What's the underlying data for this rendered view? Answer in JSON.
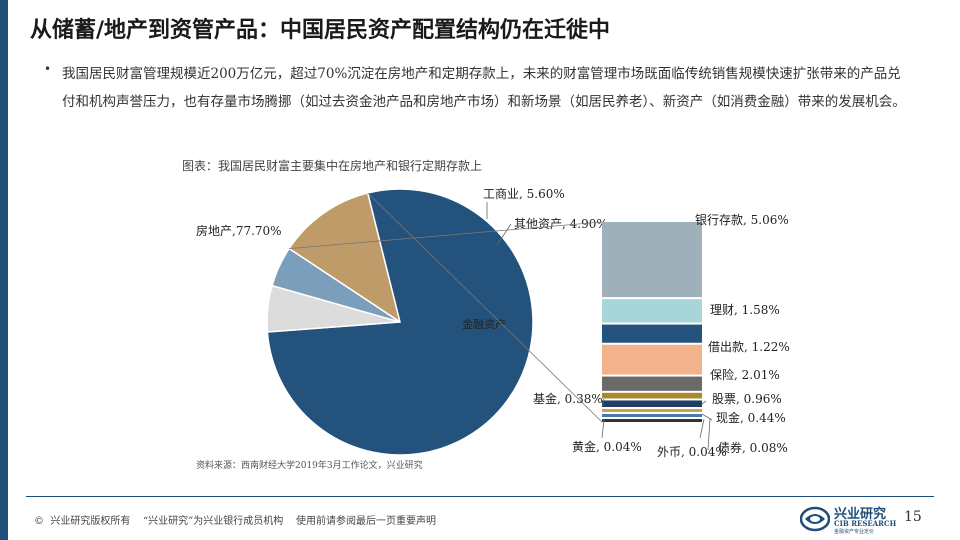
{
  "page": {
    "title": "从储蓄/地产到资管产品：中国居民资产配置结构仍在迁徙中",
    "bullet_marker": "•",
    "bullet": "我国居民财富管理规模近200万亿元，超过70%沉淀在房地产和定期存款上，未来的财富管理市场既面临传统销售规模快速扩张带来的产品兑付和机构声誉压力，也有存量市场腾挪（如过去资金池产品和房地产市场）和新场景（如居民养老）、新资产（如消费金融）带来的发展机会。",
    "chart_caption": "图表：我国居民财富主要集中在房地产和银行定期存款上",
    "source": "资料来源：西南财经大学2019年3月工作论文，兴业研究",
    "footer": "©  兴业研究版权所有    “兴业研究”为兴业银行成员机构    使用前请参阅最后一页重要声明",
    "logo_cn": "兴业研究",
    "logo_en": "CIB RESEARCH",
    "logo_sub": "金融资产专业定价",
    "page_number": "15"
  },
  "chart_data": {
    "type": "pie",
    "title": "",
    "pie": [
      {
        "name": "房地产",
        "value": 77.7,
        "label": "房地产,77.70%",
        "color": "#23527c"
      },
      {
        "name": "金融资产",
        "value": 11.8,
        "label": "金融资产",
        "color": "#bf9b6a"
      },
      {
        "name": "其他资产",
        "value": 4.9,
        "label": "其他资产, 4.90%",
        "color": "#7b9fbb"
      },
      {
        "name": "工商业",
        "value": 5.6,
        "label": "工商业, 5.60%",
        "color": "#dcdcdc"
      }
    ],
    "breakdown": [
      {
        "name": "银行存款",
        "value": 5.06,
        "label": "银行存款, 5.06%",
        "color": "#9fb0ba"
      },
      {
        "name": "理财",
        "value": 1.58,
        "label": "理财, 1.58%",
        "color": "#a8d5d8"
      },
      {
        "name": "借出款",
        "value": 1.22,
        "label": "借出款, 1.22%",
        "color": "#23527c"
      },
      {
        "name": "保险",
        "value": 2.01,
        "label": "保险, 2.01%",
        "color": "#f2b38c"
      },
      {
        "name": "股票",
        "value": 0.96,
        "label": "股票, 0.96%",
        "color": "#6a6a6a"
      },
      {
        "name": "基金",
        "value": 0.38,
        "label": "基金, 0.38%",
        "color": "#a88a2a"
      },
      {
        "name": "现金",
        "value": 0.44,
        "label": "现金, 0.44%",
        "color": "#1f3f66"
      },
      {
        "name": "黄金",
        "value": 0.04,
        "label": "黄金, 0.04%",
        "color": "#c8a64a"
      },
      {
        "name": "外币",
        "value": 0.04,
        "label": "外币, 0.04%",
        "color": "#4a7ab0"
      },
      {
        "name": "债券",
        "value": 0.08,
        "label": "债券, 0.08%",
        "color": "#333333"
      }
    ]
  }
}
